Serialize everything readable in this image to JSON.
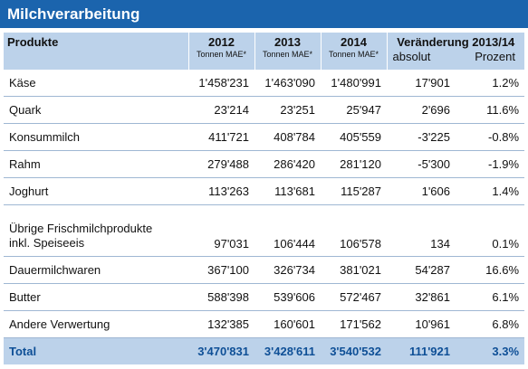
{
  "title": "Milchverarbeitung",
  "header": {
    "product": "Produkte",
    "years": [
      {
        "year": "2012",
        "unit": "Tonnen MAE*"
      },
      {
        "year": "2013",
        "unit": "Tonnen MAE*"
      },
      {
        "year": "2014",
        "unit": "Tonnen MAE*"
      }
    ],
    "change": "Veränderung 2013/14",
    "absolute": "absolut",
    "percent": "Prozent"
  },
  "table": {
    "rows": [
      [
        "Käse",
        "1'458'231",
        "1'463'090",
        "1'480'991",
        "17'901",
        "1.2%"
      ],
      [
        "Quark",
        "23'214",
        "23'251",
        "25'947",
        "2'696",
        "11.6%"
      ],
      [
        "Konsummilch",
        "411'721",
        "408'784",
        "405'559",
        "-3'225",
        "-0.8%"
      ],
      [
        "Rahm",
        "279'488",
        "286'420",
        "281'120",
        "-5'300",
        "-1.9%"
      ],
      [
        "Joghurt",
        "113'263",
        "113'681",
        "115'287",
        "1'606",
        "1.4%"
      ],
      [
        "Übrige Frischmilchprodukte\ninkl. Speiseeis",
        "97'031",
        "106'444",
        "106'578",
        "134",
        "0.1%"
      ],
      [
        "Dauermilchwaren",
        "367'100",
        "326'734",
        "381'021",
        "54'287",
        "16.6%"
      ],
      [
        "Butter",
        "588'398",
        "539'606",
        "572'467",
        "32'861",
        "6.1%"
      ],
      [
        "Andere Verwertung",
        "132'385",
        "160'601",
        "171'562",
        "10'961",
        "6.8%"
      ]
    ],
    "total": [
      "Total",
      "3'470'831",
      "3'428'611",
      "3'540'532",
      "111'921",
      "3.3%"
    ]
  }
}
